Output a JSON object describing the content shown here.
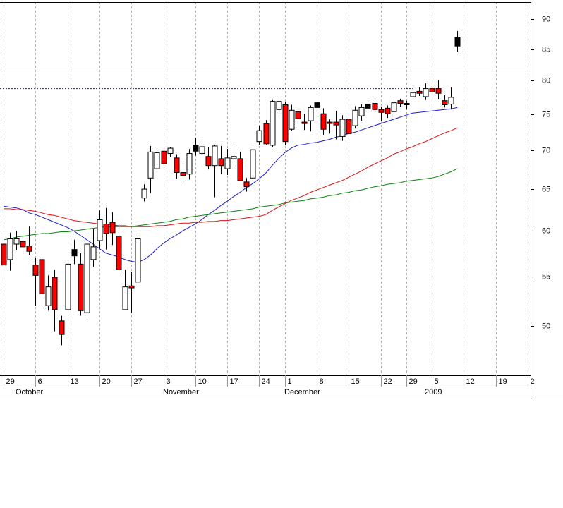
{
  "chart_data": {
    "type": "candlestick",
    "log_scale": true,
    "grid": "x",
    "ylim": [
      45.5,
      93
    ],
    "yticks": [
      50,
      55,
      60,
      65,
      70,
      75,
      80,
      85,
      90
    ],
    "categories": [
      "29",
      null,
      null,
      null,
      null,
      "6",
      null,
      null,
      null,
      null,
      "13",
      null,
      null,
      null,
      null,
      "20",
      null,
      null,
      null,
      null,
      "27",
      null,
      null,
      null,
      null,
      "3",
      null,
      null,
      null,
      null,
      "10",
      null,
      null,
      null,
      null,
      "17",
      null,
      null,
      null,
      null,
      "24",
      null,
      null,
      null,
      "1",
      null,
      null,
      null,
      null,
      "8",
      null,
      null,
      null,
      null,
      "15",
      null,
      null,
      null,
      null,
      "22",
      null,
      null,
      null,
      "29",
      null,
      null,
      null,
      "5",
      null,
      null,
      null,
      null,
      "12",
      null,
      null,
      null,
      null,
      "19",
      null,
      null,
      null,
      null,
      "2"
    ],
    "months": [
      null,
      null,
      "October",
      null,
      null,
      null,
      null,
      null,
      null,
      null,
      null,
      null,
      null,
      null,
      null,
      null,
      null,
      null,
      null,
      null,
      null,
      null,
      null,
      null,
      null,
      "November",
      null,
      null,
      null,
      null,
      null,
      null,
      null,
      null,
      null,
      null,
      null,
      null,
      null,
      null,
      null,
      null,
      null,
      null,
      "December",
      null,
      null,
      null,
      null,
      null,
      null,
      null,
      null,
      null,
      null,
      null,
      null,
      null,
      null,
      null,
      null,
      null,
      null,
      null,
      null,
      null,
      "2009",
      null,
      null,
      null,
      null,
      null,
      null,
      null,
      null,
      null,
      null,
      null,
      null,
      null,
      null,
      null,
      null
    ],
    "open": [
      58.5,
      56.8,
      58.5,
      58.8,
      58.3,
      56.2,
      56.8,
      52.0,
      54.9,
      50.5,
      51.6,
      57.2,
      56.3,
      51.3,
      56.8,
      58.9,
      60.8,
      61.0,
      59.4,
      51.6,
      54.0,
      54.4,
      63.9,
      66.4,
      67.6,
      69.9,
      69.6,
      69.0,
      67.1,
      66.9,
      69.9,
      69.6,
      69.2,
      68.0,
      68.9,
      67.6,
      68.9,
      68.9,
      65.9,
      66.4,
      71.2,
      73.7,
      70.7,
      75.7,
      76.4,
      72.9,
      75.4,
      73.9,
      74.1,
      76.0,
      75.1,
      73.9,
      73.9,
      71.9,
      74.3,
      73.4,
      74.8,
      75.9,
      76.6,
      75.7,
      75.9,
      75.4,
      77.0,
      76.6,
      77.6,
      78.4,
      77.6,
      78.8,
      78.8,
      77.0,
      76.5,
      85.5,
      null,
      null,
      null,
      null,
      null,
      null,
      null,
      null,
      null,
      null,
      null
    ],
    "high": [
      59.5,
      59.8,
      60.0,
      59.3,
      60.5,
      57.0,
      57.2,
      55.1,
      55.7,
      51.0,
      56.5,
      59.0,
      57.5,
      59.5,
      60.2,
      62.4,
      62.7,
      62.2,
      60.8,
      55.7,
      55.5,
      59.8,
      65.6,
      70.6,
      70.3,
      70.5,
      70.5,
      69.5,
      68.3,
      70.2,
      71.7,
      71.5,
      70.5,
      70.8,
      70.6,
      70.2,
      71.2,
      69.8,
      66.4,
      71.0,
      73.4,
      74.2,
      77.1,
      77.2,
      76.8,
      76.4,
      76.0,
      75.1,
      76.3,
      78.1,
      75.9,
      74.3,
      75.5,
      74.9,
      74.8,
      76.2,
      76.5,
      77.6,
      77.3,
      76.1,
      76.3,
      77.0,
      77.3,
      77.0,
      78.6,
      79.0,
      79.6,
      79.3,
      80.1,
      77.8,
      79.0,
      88.0,
      null,
      null,
      null,
      null,
      null,
      null,
      null,
      null,
      null,
      null,
      null
    ],
    "low": [
      54.5,
      55.6,
      57.8,
      57.6,
      57.3,
      52.0,
      51.8,
      51.5,
      49.5,
      48.2,
      51.5,
      56.3,
      51.0,
      50.8,
      56.0,
      58.0,
      57.9,
      58.4,
      55.2,
      51.6,
      51.3,
      54.2,
      63.5,
      64.5,
      66.9,
      67.7,
      69.1,
      66.3,
      65.6,
      66.2,
      69.3,
      68.1,
      67.5,
      64.0,
      66.9,
      66.8,
      67.9,
      66.1,
      64.7,
      66.0,
      70.8,
      70.8,
      70.4,
      75.2,
      70.7,
      72.7,
      73.2,
      72.8,
      72.6,
      75.5,
      72.1,
      72.3,
      71.5,
      71.3,
      70.8,
      73.0,
      74.1,
      75.5,
      75.3,
      74.1,
      74.5,
      75.0,
      76.1,
      75.7,
      77.3,
      77.7,
      77.1,
      77.9,
      77.2,
      76.0,
      75.7,
      84.6,
      null,
      null,
      null,
      null,
      null,
      null,
      null,
      null,
      null,
      null,
      null
    ],
    "close": [
      56.2,
      59.1,
      59.1,
      58.2,
      57.7,
      55.1,
      53.2,
      53.9,
      51.6,
      49.2,
      56.3,
      57.9,
      51.5,
      58.5,
      58.2,
      61.3,
      59.7,
      59.8,
      55.7,
      53.9,
      53.8,
      59.1,
      65.0,
      69.8,
      69.7,
      68.3,
      70.3,
      67.1,
      66.7,
      69.6,
      70.7,
      70.5,
      68.0,
      70.6,
      68.0,
      69.0,
      69.2,
      66.1,
      65.3,
      70.1,
      72.7,
      70.9,
      76.9,
      76.9,
      71.2,
      75.6,
      74.4,
      73.7,
      76.0,
      76.7,
      72.9,
      73.7,
      73.5,
      74.3,
      72.3,
      75.6,
      76.0,
      76.5,
      75.7,
      75.3,
      75.1,
      76.7,
      76.6,
      76.4,
      78.2,
      78.1,
      78.8,
      78.3,
      78.1,
      76.4,
      77.5,
      86.9,
      null,
      null,
      null,
      null,
      null,
      null,
      null,
      null,
      null,
      null,
      null
    ],
    "candle_fills": [
      "red",
      "white",
      "white",
      "red",
      "red",
      "red",
      "red",
      "white",
      "red",
      "red",
      "white",
      "black",
      "red",
      "white",
      "white",
      "white",
      "red",
      "red",
      "red",
      "white",
      "red",
      "white",
      "white",
      "white",
      "white",
      "red",
      "white",
      "red",
      "red",
      "white",
      "black",
      "white",
      "red",
      "white",
      "red",
      "white",
      "white",
      "red",
      "red",
      "white",
      "white",
      "red",
      "white",
      "white",
      "red",
      "white",
      "red",
      "red",
      "white",
      "black",
      "red",
      "red",
      "red",
      "white",
      "red",
      "white",
      "white",
      "black",
      "red",
      "red",
      "red",
      "white",
      "red",
      "red",
      "white",
      "red",
      "white",
      "red",
      "red",
      "red",
      "white",
      "black",
      null,
      null,
      null,
      null,
      null,
      null,
      null,
      null,
      null,
      null,
      null
    ],
    "wick_color": "#000000",
    "hlines": [
      {
        "value": 81.2,
        "color": "#1c1cc8"
      }
    ],
    "series": [
      {
        "color": "#1c1cc8",
        "values": [
          62.9,
          62.8,
          62.7,
          62.5,
          62.1,
          61.9,
          61.6,
          61.3,
          61.0,
          60.7,
          60.4,
          60.0,
          59.5,
          59.0,
          58.5,
          58.0,
          57.5,
          57.3,
          57.1,
          56.8,
          56.6,
          56.5,
          56.8,
          57.3,
          58.0,
          58.6,
          59.1,
          59.5,
          60.0,
          60.4,
          60.8,
          61.3,
          61.9,
          62.4,
          63.0,
          63.5,
          64.1,
          64.6,
          65.2,
          65.7,
          66.3,
          67.0,
          68.0,
          68.9,
          69.7,
          70.3,
          70.7,
          70.8,
          71.0,
          71.1,
          71.3,
          71.5,
          71.8,
          72.0,
          72.3,
          72.5,
          72.8,
          73.1,
          73.4,
          73.7,
          74.0,
          74.3,
          74.6,
          74.9,
          75.2,
          75.3,
          75.4,
          75.5,
          75.6,
          75.7,
          75.8,
          76.0,
          null,
          null,
          null,
          null,
          null,
          null,
          null,
          null,
          null,
          null,
          null
        ]
      },
      {
        "color": "#e01010",
        "values": [
          62.6,
          62.6,
          62.5,
          62.5,
          62.4,
          62.3,
          62.1,
          61.9,
          61.8,
          61.6,
          61.4,
          61.2,
          61.1,
          61.0,
          60.9,
          60.8,
          60.8,
          60.7,
          60.6,
          60.6,
          60.5,
          60.5,
          60.5,
          60.5,
          60.6,
          60.6,
          60.7,
          60.8,
          60.9,
          60.9,
          61.0,
          61.0,
          61.1,
          61.1,
          61.2,
          61.2,
          61.3,
          61.4,
          61.5,
          61.6,
          61.7,
          61.9,
          62.4,
          62.8,
          63.2,
          63.6,
          63.9,
          64.2,
          64.6,
          64.9,
          65.2,
          65.5,
          65.8,
          66.1,
          66.5,
          66.9,
          67.3,
          67.8,
          68.2,
          68.6,
          69.0,
          69.5,
          69.8,
          70.2,
          70.5,
          70.9,
          71.2,
          71.6,
          72.0,
          72.4,
          72.7,
          73.1,
          null,
          null,
          null,
          null,
          null,
          null,
          null,
          null,
          null,
          null,
          null
        ]
      },
      {
        "color": "#108010",
        "values": [
          59.0,
          59.1,
          59.3,
          59.4,
          59.5,
          59.6,
          59.7,
          59.7,
          59.8,
          59.9,
          59.9,
          60.0,
          60.1,
          60.2,
          60.3,
          60.4,
          60.5,
          60.5,
          60.5,
          60.5,
          60.5,
          60.6,
          60.7,
          60.8,
          60.9,
          61.0,
          61.1,
          61.3,
          61.4,
          61.6,
          61.7,
          61.8,
          61.9,
          62.0,
          62.1,
          62.2,
          62.3,
          62.4,
          62.5,
          62.6,
          62.8,
          62.9,
          63.0,
          63.1,
          63.3,
          63.4,
          63.5,
          63.6,
          63.8,
          63.9,
          64.0,
          64.2,
          64.3,
          64.5,
          64.6,
          64.8,
          64.9,
          65.1,
          65.3,
          65.4,
          65.6,
          65.7,
          65.8,
          66.0,
          66.1,
          66.2,
          66.3,
          66.4,
          66.6,
          66.9,
          67.2,
          67.6,
          null,
          null,
          null,
          null,
          null,
          null,
          null,
          null,
          null,
          null,
          null
        ]
      },
      {
        "color": "#1c1cc8",
        "style": "dotted",
        "values": [
          78.8,
          78.8,
          78.8,
          78.8,
          78.8,
          78.8,
          78.8,
          78.8,
          78.8,
          78.8,
          78.8,
          78.8,
          78.8,
          78.8,
          78.8,
          78.8,
          78.8,
          78.8,
          78.8,
          78.8,
          78.8,
          78.8,
          78.8,
          78.8,
          78.8,
          78.8,
          78.8,
          78.8,
          78.8,
          78.8,
          78.8,
          78.8,
          78.8,
          78.8,
          78.8,
          78.8,
          78.8,
          78.8,
          78.8,
          78.8,
          78.8,
          78.8,
          78.8,
          78.8,
          78.8,
          78.8,
          78.8,
          78.8,
          78.8,
          78.8,
          78.8,
          78.8,
          78.8,
          78.8,
          78.8,
          78.8,
          78.8,
          78.8,
          78.8,
          78.8,
          78.8,
          78.8,
          78.8,
          78.8,
          78.8,
          null,
          null,
          null,
          null,
          null,
          null,
          null,
          null,
          null,
          null,
          null,
          null,
          null,
          null,
          null,
          null,
          null,
          null
        ]
      }
    ]
  }
}
